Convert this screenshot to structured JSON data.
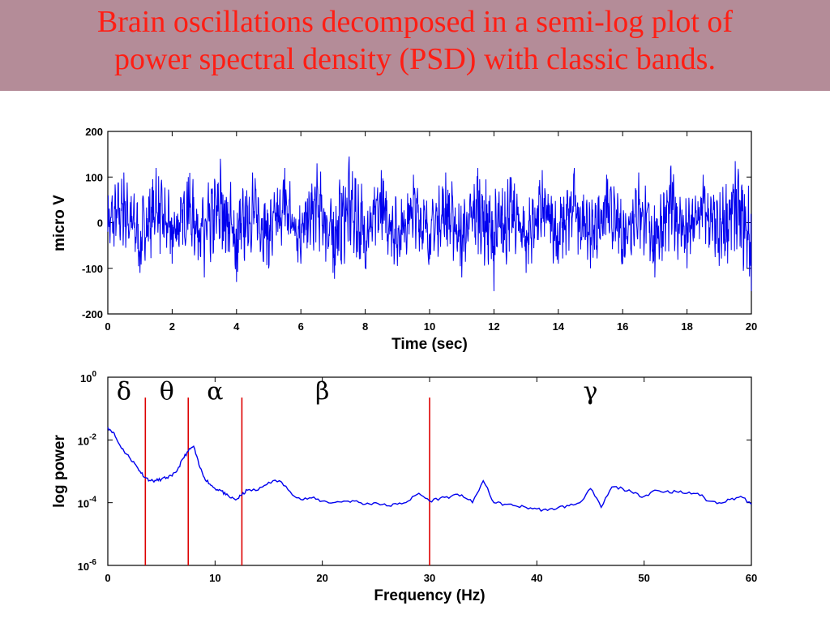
{
  "slide": {
    "title_line1": "Brain oscillations decomposed in a semi-log plot of",
    "title_line2": "power spectral density (PSD) with classic bands.",
    "banner_color": "#b48c98",
    "title_color": "#ff1e14"
  },
  "chart_data": [
    {
      "type": "line",
      "xlabel": "Time (sec)",
      "ylabel": "micro V",
      "xlim": [
        0,
        20
      ],
      "ylim": [
        -200,
        200
      ],
      "xticks": [
        "0",
        "2",
        "4",
        "6",
        "8",
        "10",
        "12",
        "14",
        "16",
        "18",
        "20"
      ],
      "yticks": [
        "200",
        "100",
        "0",
        "-100",
        "-200"
      ],
      "line_color": "#0000ee",
      "grid": false,
      "series": [
        {
          "x": [
            0,
            0.5,
            1,
            1.5,
            2,
            2.5,
            3,
            3.5,
            4,
            4.5,
            5,
            5.5,
            6,
            6.5,
            7,
            7.5,
            8,
            8.5,
            9,
            9.5,
            10,
            10.5,
            11,
            11.5,
            12,
            12.5,
            13,
            13.5,
            14,
            14.5,
            15,
            15.5,
            16,
            16.5,
            17,
            17.5,
            18,
            18.5,
            19,
            19.5,
            20
          ],
          "y": [
            -20,
            110,
            -110,
            120,
            -90,
            100,
            -120,
            140,
            -130,
            110,
            -100,
            120,
            -90,
            130,
            -110,
            145,
            -100,
            115,
            -95,
            105,
            -80,
            110,
            -120,
            120,
            -150,
            100,
            -110,
            115,
            -90,
            120,
            -100,
            105,
            -90,
            110,
            -120,
            125,
            -100,
            105,
            -95,
            135,
            -150
          ]
        }
      ]
    },
    {
      "type": "line",
      "xlabel": "Frequency (Hz)",
      "ylabel": "log power",
      "xlim": [
        0,
        60
      ],
      "ylim_log10": [
        -6,
        0
      ],
      "xticks": [
        "0",
        "10",
        "20",
        "30",
        "40",
        "50",
        "60"
      ],
      "yticks": [
        {
          "base": "10",
          "exp": "0",
          "log10": 0
        },
        {
          "base": "10",
          "exp": "-2",
          "log10": -2
        },
        {
          "base": "10",
          "exp": "-4",
          "log10": -4
        },
        {
          "base": "10",
          "exp": "-6",
          "log10": -6
        }
      ],
      "line_color": "#0000ee",
      "grid": false,
      "series": [
        {
          "x": [
            0,
            0.5,
            1,
            1.5,
            2,
            2.5,
            3,
            3.5,
            4,
            4.5,
            5,
            5.5,
            6,
            6.5,
            7,
            7.5,
            8,
            8.5,
            9,
            9.5,
            10,
            10.5,
            11,
            11.5,
            12,
            12.5,
            13,
            14,
            15,
            16,
            17,
            18,
            19,
            20,
            21,
            22,
            23,
            24,
            25,
            26,
            27,
            28,
            29,
            30,
            31,
            32,
            33,
            34,
            35,
            36,
            37,
            38,
            39,
            40,
            41,
            42,
            43,
            44,
            45,
            46,
            47,
            48,
            49,
            50,
            51,
            52,
            53,
            54,
            55,
            56,
            57,
            58,
            59,
            60
          ],
          "y_log10": [
            -1.6,
            -1.75,
            -2.1,
            -2.35,
            -2.55,
            -2.75,
            -3.0,
            -3.2,
            -3.3,
            -3.3,
            -3.25,
            -3.2,
            -3.15,
            -2.95,
            -2.6,
            -2.35,
            -2.2,
            -2.8,
            -3.2,
            -3.4,
            -3.55,
            -3.6,
            -3.75,
            -3.85,
            -3.9,
            -3.75,
            -3.6,
            -3.6,
            -3.35,
            -3.3,
            -3.65,
            -3.9,
            -3.85,
            -3.95,
            -4.0,
            -3.95,
            -3.95,
            -4.05,
            -4.0,
            -4.1,
            -4.05,
            -3.95,
            -3.7,
            -3.95,
            -3.85,
            -3.8,
            -3.75,
            -4.0,
            -3.3,
            -4.0,
            -4.05,
            -4.1,
            -4.15,
            -4.2,
            -4.25,
            -4.15,
            -4.1,
            -4.0,
            -3.55,
            -4.15,
            -3.5,
            -3.55,
            -3.7,
            -3.8,
            -3.6,
            -3.65,
            -3.65,
            -3.7,
            -3.7,
            -3.95,
            -4.0,
            -3.9,
            -3.8,
            -4.05
          ]
        }
      ],
      "band_boundaries_hz": [
        3.5,
        7.5,
        12.5,
        30
      ],
      "band_line_color": "#dd0000",
      "bands": [
        {
          "symbol": "δ",
          "hz": 1.5
        },
        {
          "symbol": "θ",
          "hz": 5.5
        },
        {
          "symbol": "α",
          "hz": 10
        },
        {
          "symbol": "β",
          "hz": 20
        },
        {
          "symbol": "γ",
          "hz": 45
        }
      ]
    }
  ]
}
